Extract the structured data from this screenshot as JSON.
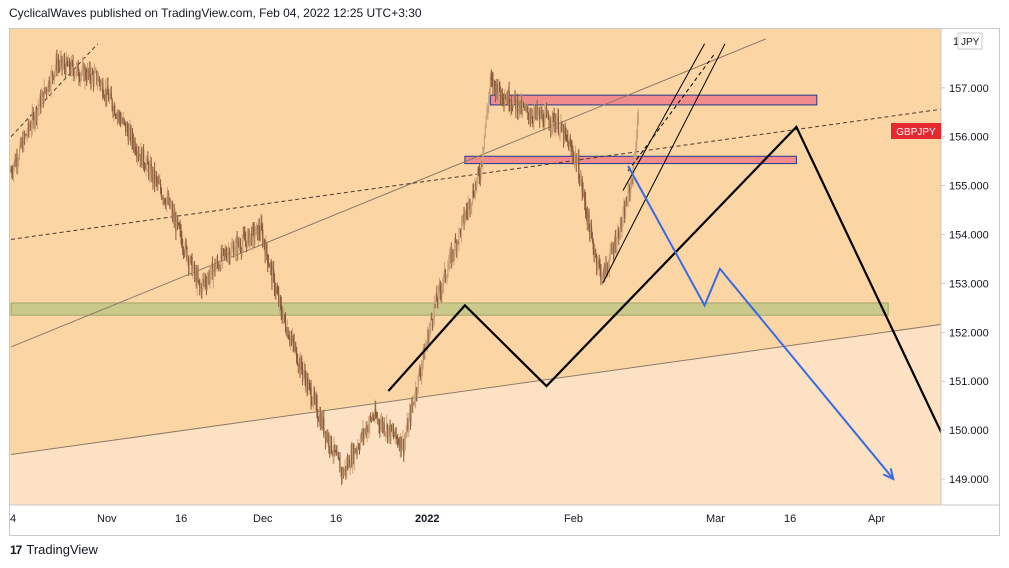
{
  "header": {
    "published_text": "CyclicalWaves published on TradingView.com, Feb 04, 2022 12:25 UTC+3:30"
  },
  "footer": {
    "logo_glyph": "17",
    "brand": "TradingView"
  },
  "colors": {
    "background_upper": "#fbd6a4",
    "background_lower": "#fce2c2",
    "bull_candle": "#c9a27a",
    "bear_candle": "#8a5a3a",
    "resistance_zone": "#f28b8b",
    "resistance_border": "#1e3a8a",
    "support_zone": "#c9c98a",
    "projection_black": "#000000",
    "projection_blue": "#3b6ae6",
    "price_tag": "#e5282f"
  },
  "chart_data": {
    "type": "candlestick",
    "symbol": "GBPJPY",
    "currency_badge": "JPY",
    "y_top_label": "1",
    "price_tag": "GBPJPY",
    "ylim": [
      148.5,
      158.0
    ],
    "y_ticks": [
      "149.000",
      "150.000",
      "151.000",
      "152.000",
      "153.000",
      "154.000",
      "155.000",
      "156.000",
      "157.000"
    ],
    "x_ticks": [
      "4",
      "Nov",
      "16",
      "Dec",
      "16",
      "2022",
      "Feb",
      "Mar",
      "16",
      "Apr"
    ],
    "price_path_approx": [
      {
        "date": "Oct 04",
        "price": 155.3
      },
      {
        "date": "Oct 13",
        "price": 157.5
      },
      {
        "date": "Oct 21",
        "price": 157.2
      },
      {
        "date": "Nov 04",
        "price": 154.6
      },
      {
        "date": "Nov 10",
        "price": 152.9
      },
      {
        "date": "Nov 15",
        "price": 153.6
      },
      {
        "date": "Nov 22",
        "price": 154.1
      },
      {
        "date": "Nov 26",
        "price": 152.4
      },
      {
        "date": "Dec 03",
        "price": 150.4
      },
      {
        "date": "Dec 08",
        "price": 149.1
      },
      {
        "date": "Dec 14",
        "price": 150.3
      },
      {
        "date": "Dec 20",
        "price": 149.7
      },
      {
        "date": "Dec 26",
        "price": 152.5
      },
      {
        "date": "Jan 04",
        "price": 155.3
      },
      {
        "date": "Jan 06",
        "price": 157.1
      },
      {
        "date": "Jan 13",
        "price": 156.5
      },
      {
        "date": "Jan 19",
        "price": 156.3
      },
      {
        "date": "Jan 23",
        "price": 155.5
      },
      {
        "date": "Jan 26",
        "price": 153.8
      },
      {
        "date": "Jan 28",
        "price": 153.1
      },
      {
        "date": "Feb 01",
        "price": 154.3
      },
      {
        "date": "Feb 03",
        "price": 155.3
      },
      {
        "date": "Feb 04",
        "price": 156.4
      }
    ],
    "zones": [
      {
        "kind": "resistance",
        "low": 156.65,
        "high": 156.85,
        "from": "Jan 06",
        "to": "Mar 11"
      },
      {
        "kind": "resistance",
        "low": 155.45,
        "high": 155.6,
        "from": "Jan 01",
        "to": "Mar 07"
      },
      {
        "kind": "support",
        "low": 152.35,
        "high": 152.6,
        "from": "Oct 04",
        "to": "Mar 25"
      }
    ],
    "trendlines": [
      {
        "style": "solid",
        "from": {
          "date": "Oct 04",
          "price": 151.7
        },
        "to": {
          "date": "Mar 01",
          "price": 158.0
        }
      },
      {
        "style": "solid",
        "from": {
          "date": "Oct 04",
          "price": 149.5
        },
        "to": {
          "date": "Apr 07",
          "price": 152.2
        }
      },
      {
        "style": "dashed",
        "from": {
          "date": "Oct 04",
          "price": 153.9
        },
        "to": {
          "date": "Apr 07",
          "price": 156.6
        }
      },
      {
        "style": "dashed",
        "from": {
          "date": "Oct 04",
          "price": 156.0
        },
        "to": {
          "date": "Oct 21",
          "price": 157.9
        }
      }
    ],
    "channel": {
      "lower": {
        "from": {
          "date": "Jan 28",
          "price": 153.0
        },
        "to": {
          "date": "Feb 21",
          "price": 157.9
        }
      },
      "upper": {
        "from": {
          "date": "Feb 01",
          "price": 154.9
        },
        "to": {
          "date": "Feb 17",
          "price": 157.9
        }
      },
      "mid_dashed": {
        "from": {
          "date": "Feb 02",
          "price": 155.3
        },
        "to": {
          "date": "Feb 19",
          "price": 157.7
        }
      }
    },
    "projections": [
      {
        "name": "black",
        "points": [
          {
            "date": "Dec 17",
            "price": 150.8
          },
          {
            "date": "Jan 01",
            "price": 152.55
          },
          {
            "date": "Jan 17",
            "price": 150.9
          },
          {
            "date": "Mar 07",
            "price": 156.2
          },
          {
            "date": "Apr 11",
            "price": 148.5
          }
        ]
      },
      {
        "name": "blue",
        "points": [
          {
            "date": "Feb 02",
            "price": 155.4
          },
          {
            "date": "Feb 17",
            "price": 152.55
          },
          {
            "date": "Feb 20",
            "price": 153.3
          },
          {
            "date": "Mar 26",
            "price": 149.0
          }
        ]
      }
    ]
  }
}
